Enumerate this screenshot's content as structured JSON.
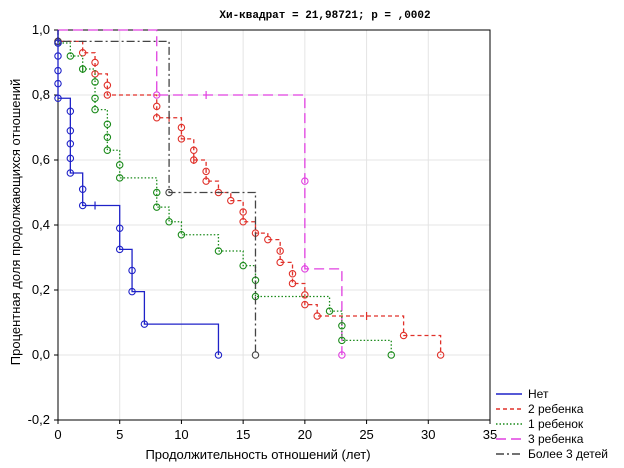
{
  "chart_data": {
    "type": "line",
    "subtype": "kaplan-meier survival curves",
    "title": "Хи-квадрат = 21,98721; p =  ,0002",
    "xlabel": "Продолжительность отношений (лет)",
    "ylabel": "Процентная доля продолжающихся отношений",
    "xlim": [
      0,
      35
    ],
    "ylim": [
      -0.2,
      1.0
    ],
    "x_ticks": [
      "0",
      "5",
      "10",
      "15",
      "20",
      "25",
      "30",
      "35"
    ],
    "y_ticks": [
      "-0,2",
      "0,0",
      "0,2",
      "0,4",
      "0,6",
      "0,8",
      "1,0"
    ],
    "grid": true,
    "legend_position": "bottom-right",
    "series": [
      {
        "name": "Нет",
        "color": "#1f22c8",
        "dash": "solid",
        "steps": [
          [
            0,
            1.0
          ],
          [
            0,
            0.96
          ],
          [
            0,
            0.92
          ],
          [
            0,
            0.875
          ],
          [
            0,
            0.835
          ],
          [
            0,
            0.79
          ],
          [
            1,
            0.75
          ],
          [
            1,
            0.69
          ],
          [
            1,
            0.65
          ],
          [
            1,
            0.605
          ],
          [
            1,
            0.56
          ],
          [
            2,
            0.51
          ],
          [
            2,
            0.46
          ],
          [
            5,
            0.39
          ],
          [
            5,
            0.325
          ],
          [
            6,
            0.26
          ],
          [
            6,
            0.195
          ],
          [
            7,
            0.095
          ],
          [
            13,
            0.0
          ]
        ],
        "events": [
          [
            0,
            0.96
          ],
          [
            0,
            0.92
          ],
          [
            0,
            0.875
          ],
          [
            0,
            0.835
          ],
          [
            0,
            0.79
          ],
          [
            1,
            0.75
          ],
          [
            1,
            0.69
          ],
          [
            1,
            0.65
          ],
          [
            1,
            0.605
          ],
          [
            1,
            0.56
          ],
          [
            2,
            0.51
          ],
          [
            2,
            0.46
          ],
          [
            5,
            0.39
          ],
          [
            5,
            0.325
          ],
          [
            6,
            0.26
          ],
          [
            6,
            0.195
          ],
          [
            7,
            0.095
          ],
          [
            13,
            0.0
          ]
        ],
        "censored": [
          [
            3,
            0.46
          ]
        ]
      },
      {
        "name": "2 ребенка",
        "color": "#e0312a",
        "dash": "4,3",
        "steps": [
          [
            0,
            1.0
          ],
          [
            0,
            0.965
          ],
          [
            2,
            0.93
          ],
          [
            3,
            0.9
          ],
          [
            3,
            0.865
          ],
          [
            4,
            0.83
          ],
          [
            4,
            0.8
          ],
          [
            8,
            0.765
          ],
          [
            8,
            0.73
          ],
          [
            10,
            0.7
          ],
          [
            10,
            0.665
          ],
          [
            11,
            0.63
          ],
          [
            11,
            0.6
          ],
          [
            12,
            0.565
          ],
          [
            12,
            0.535
          ],
          [
            13,
            0.5
          ],
          [
            14,
            0.475
          ],
          [
            15,
            0.44
          ],
          [
            15,
            0.41
          ],
          [
            16,
            0.375
          ],
          [
            17,
            0.355
          ],
          [
            18,
            0.32
          ],
          [
            18,
            0.285
          ],
          [
            19,
            0.25
          ],
          [
            19,
            0.22
          ],
          [
            20,
            0.185
          ],
          [
            20,
            0.155
          ],
          [
            21,
            0.12
          ],
          [
            28,
            0.06
          ],
          [
            31,
            0.0
          ]
        ],
        "events": [
          [
            0,
            0.965
          ],
          [
            2,
            0.93
          ],
          [
            3,
            0.9
          ],
          [
            3,
            0.865
          ],
          [
            4,
            0.83
          ],
          [
            4,
            0.8
          ],
          [
            8,
            0.765
          ],
          [
            8,
            0.73
          ],
          [
            10,
            0.7
          ],
          [
            10,
            0.665
          ],
          [
            11,
            0.63
          ],
          [
            11,
            0.6
          ],
          [
            12,
            0.565
          ],
          [
            12,
            0.535
          ],
          [
            13,
            0.5
          ],
          [
            14,
            0.475
          ],
          [
            15,
            0.44
          ],
          [
            15,
            0.41
          ],
          [
            16,
            0.375
          ],
          [
            17,
            0.355
          ],
          [
            18,
            0.32
          ],
          [
            18,
            0.285
          ],
          [
            19,
            0.25
          ],
          [
            19,
            0.22
          ],
          [
            20,
            0.185
          ],
          [
            20,
            0.155
          ],
          [
            21,
            0.12
          ],
          [
            28,
            0.06
          ],
          [
            31,
            0.0
          ]
        ],
        "censored": [
          [
            9,
            0.73
          ],
          [
            11,
            0.6
          ],
          [
            25,
            0.12
          ]
        ]
      },
      {
        "name": "1 ребенок",
        "color": "#1a8a1a",
        "dash": "1.5,2",
        "steps": [
          [
            0,
            1.0
          ],
          [
            0,
            0.96
          ],
          [
            1,
            0.92
          ],
          [
            2,
            0.88
          ],
          [
            3,
            0.84
          ],
          [
            3,
            0.79
          ],
          [
            3,
            0.755
          ],
          [
            4,
            0.71
          ],
          [
            4,
            0.67
          ],
          [
            4,
            0.63
          ],
          [
            5,
            0.585
          ],
          [
            5,
            0.545
          ],
          [
            8,
            0.5
          ],
          [
            8,
            0.455
          ],
          [
            9,
            0.41
          ],
          [
            10,
            0.37
          ],
          [
            13,
            0.32
          ],
          [
            15,
            0.275
          ],
          [
            16,
            0.23
          ],
          [
            16,
            0.18
          ],
          [
            22,
            0.135
          ],
          [
            23,
            0.09
          ],
          [
            23,
            0.045
          ],
          [
            27,
            0.0
          ]
        ],
        "events": [
          [
            0,
            0.96
          ],
          [
            1,
            0.92
          ],
          [
            2,
            0.88
          ],
          [
            3,
            0.84
          ],
          [
            3,
            0.79
          ],
          [
            3,
            0.755
          ],
          [
            4,
            0.71
          ],
          [
            4,
            0.67
          ],
          [
            4,
            0.63
          ],
          [
            5,
            0.585
          ],
          [
            5,
            0.545
          ],
          [
            8,
            0.5
          ],
          [
            8,
            0.455
          ],
          [
            9,
            0.41
          ],
          [
            10,
            0.37
          ],
          [
            13,
            0.32
          ],
          [
            15,
            0.275
          ],
          [
            16,
            0.23
          ],
          [
            16,
            0.18
          ],
          [
            22,
            0.135
          ],
          [
            23,
            0.09
          ],
          [
            23,
            0.045
          ],
          [
            27,
            0.0
          ]
        ],
        "censored": [
          [
            2,
            0.88
          ]
        ]
      },
      {
        "name": "3 ребенка",
        "color": "#e040e0",
        "dash": "10,5",
        "steps": [
          [
            0,
            1.0
          ],
          [
            8,
            0.8
          ],
          [
            20,
            0.535
          ],
          [
            20,
            0.265
          ],
          [
            23,
            0.0
          ]
        ],
        "events": [
          [
            8,
            0.8
          ],
          [
            20,
            0.535
          ],
          [
            20,
            0.265
          ],
          [
            23,
            0.0
          ]
        ],
        "censored": [
          [
            12,
            0.8
          ]
        ]
      },
      {
        "name": "Более 3 детей",
        "color": "#444444",
        "dash": "8,3,2,3",
        "steps": [
          [
            0,
            1.0
          ],
          [
            0,
            0.965
          ],
          [
            9,
            0.5
          ],
          [
            16,
            0.0
          ]
        ],
        "events": [
          [
            0,
            0.965
          ],
          [
            9,
            0.5
          ],
          [
            16,
            0.0
          ]
        ],
        "censored": []
      }
    ]
  }
}
